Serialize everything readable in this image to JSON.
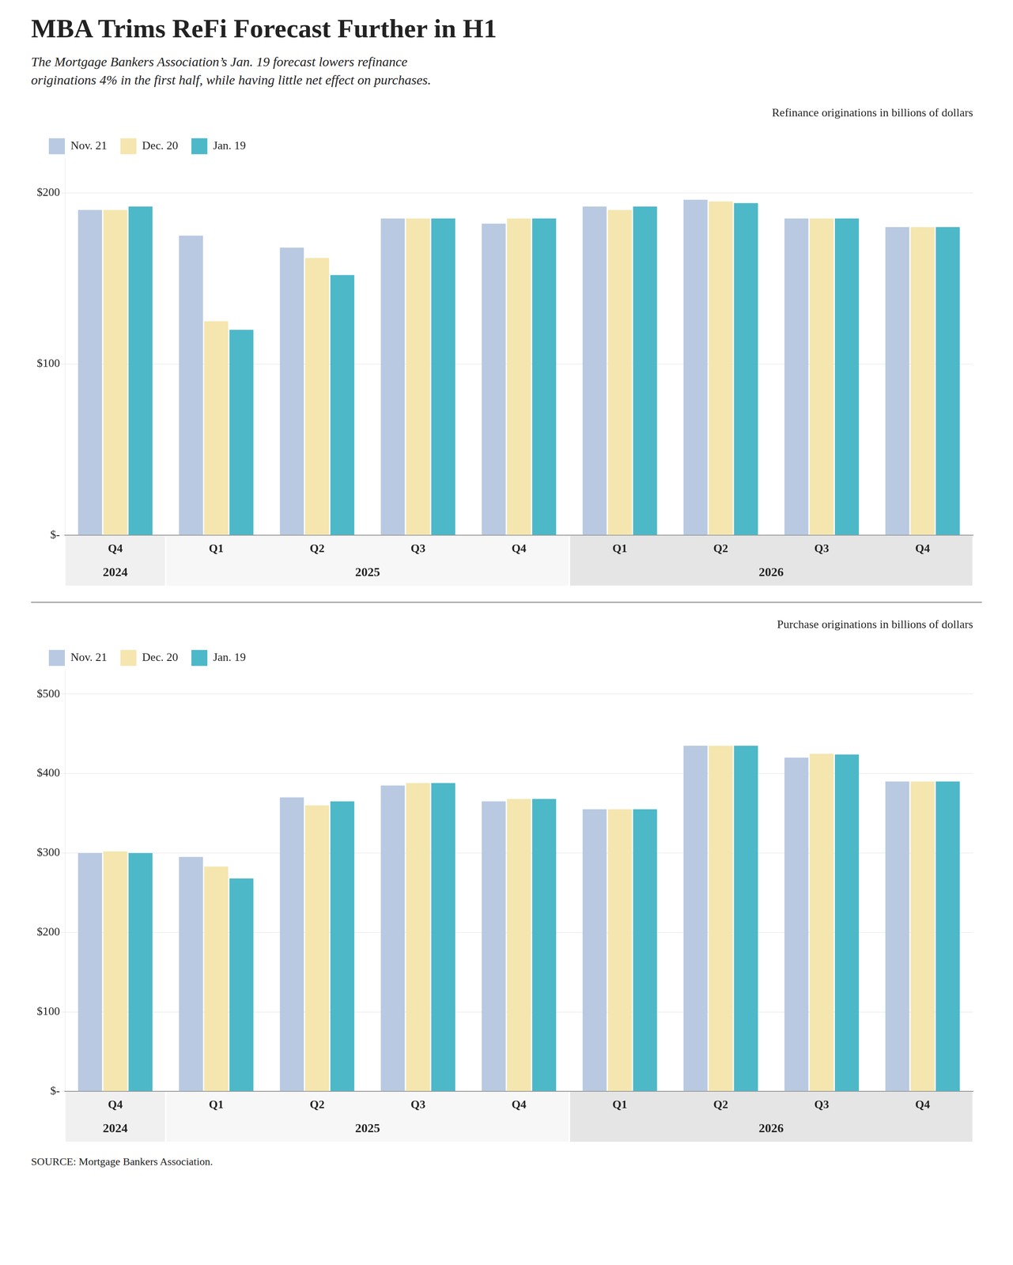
{
  "title": "MBA Trims ReFi Forecast Further in H1",
  "subtitle": "The Mortgage Bankers Association’s Jan. 19 forecast lowers refinance\noriginations 4% in the first half, while having little net effect on purchases.",
  "source": "SOURCE: Mortgage Bankers Association.",
  "chart_data": [
    {
      "type": "bar",
      "ylabel": "Refinance originations in billions of dollars",
      "categories": [
        "Q4",
        "Q1",
        "Q2",
        "Q3",
        "Q4",
        "Q1",
        "Q2",
        "Q3",
        "Q4"
      ],
      "groups": [
        {
          "label": "2024",
          "span": [
            0,
            1
          ]
        },
        {
          "label": "2025",
          "span": [
            1,
            5
          ]
        },
        {
          "label": "2026",
          "span": [
            5,
            9
          ]
        }
      ],
      "series": [
        {
          "name": "Nov. 21",
          "color": "#b8c9e1",
          "values": [
            190,
            175,
            168,
            185,
            182,
            192,
            196,
            185,
            180
          ]
        },
        {
          "name": "Dec. 20",
          "color": "#f5e6b0",
          "values": [
            190,
            125,
            162,
            185,
            185,
            190,
            195,
            185,
            180
          ]
        },
        {
          "name": "Jan. 19",
          "color": "#4db8c8",
          "values": [
            192,
            120,
            152,
            185,
            185,
            192,
            194,
            185,
            180
          ]
        }
      ],
      "ylim": [
        0,
        220
      ],
      "yticks": [
        {
          "value": 0,
          "label": "$-"
        },
        {
          "value": 100,
          "label": "$100"
        },
        {
          "value": 200,
          "label": "$200"
        }
      ],
      "grid": true,
      "legend": "upper left"
    },
    {
      "type": "bar",
      "ylabel": "Purchase originations in billions of dollars",
      "categories": [
        "Q4",
        "Q1",
        "Q2",
        "Q3",
        "Q4",
        "Q1",
        "Q2",
        "Q3",
        "Q4"
      ],
      "groups": [
        {
          "label": "2024",
          "span": [
            0,
            1
          ]
        },
        {
          "label": "2025",
          "span": [
            1,
            5
          ]
        },
        {
          "label": "2026",
          "span": [
            5,
            9
          ]
        }
      ],
      "series": [
        {
          "name": "Nov. 21",
          "color": "#b8c9e1",
          "values": [
            300,
            295,
            370,
            385,
            365,
            355,
            435,
            420,
            390
          ]
        },
        {
          "name": "Dec. 20",
          "color": "#f5e6b0",
          "values": [
            302,
            283,
            360,
            388,
            368,
            355,
            435,
            425,
            390
          ]
        },
        {
          "name": "Jan. 19",
          "color": "#4db8c8",
          "values": [
            300,
            268,
            365,
            388,
            368,
            355,
            435,
            424,
            390
          ]
        }
      ],
      "ylim": [
        0,
        530
      ],
      "yticks": [
        {
          "value": 0,
          "label": "$-"
        },
        {
          "value": 100,
          "label": "$100"
        },
        {
          "value": 200,
          "label": "$200"
        },
        {
          "value": 300,
          "label": "$300"
        },
        {
          "value": 400,
          "label": "$400"
        },
        {
          "value": 500,
          "label": "$500"
        }
      ],
      "grid": true,
      "legend": "upper left"
    }
  ]
}
